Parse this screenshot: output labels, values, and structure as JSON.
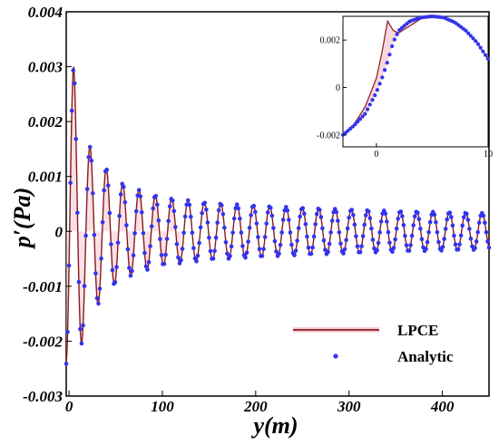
{
  "chart_data": {
    "type": "line",
    "xlabel": "y(m)",
    "ylabel": "p′(Pa)",
    "xlim": [
      -3,
      450
    ],
    "ylim": [
      -0.003,
      0.004
    ],
    "xticks": [
      "0",
      "100",
      "200",
      "300",
      "400"
    ],
    "xtick_values": [
      0,
      100,
      200,
      300,
      400
    ],
    "yticks": [
      "-0.003",
      "-0.002",
      "-0.001",
      "0",
      "0.001",
      "0.002",
      "0.003",
      "0.004"
    ],
    "ytick_values": [
      -0.003,
      -0.002,
      -0.001,
      0,
      0.001,
      0.002,
      0.003,
      0.004
    ],
    "legend_position": "bottom-right",
    "series": [
      {
        "name": "LPCE",
        "style": "line",
        "color": "#8b1a1a",
        "fill": "#f2c8d0"
      },
      {
        "name": "Analytic",
        "style": "markers",
        "color": "#3333ee"
      }
    ],
    "wave": {
      "y": [
        -3,
        0,
        5,
        10,
        15,
        20,
        30,
        40,
        50,
        60,
        80,
        100,
        150,
        200,
        250,
        300,
        350,
        400,
        450
      ],
      "amplitude": [
        0.0025,
        0.0028,
        0.003,
        0.0024,
        0.0019,
        0.0016,
        0.00135,
        0.00115,
        0.00095,
        0.00085,
        0.00072,
        0.00062,
        0.00052,
        0.00047,
        0.00043,
        0.0004,
        0.00037,
        0.00035,
        0.00033
      ],
      "wavelength": 17.5,
      "peak_at": 5
    },
    "inset": {
      "xlim": [
        -3,
        10
      ],
      "ylim": [
        -0.0025,
        0.003
      ],
      "xticks": [
        "0",
        "10"
      ],
      "xtick_values": [
        0,
        10
      ],
      "yticks": [
        "-0.002",
        "0",
        "0.002"
      ],
      "ytick_values": [
        -0.002,
        0,
        0.002
      ],
      "lpce_x": [
        -3,
        -2,
        -1,
        0,
        0.5,
        1,
        1.5,
        2,
        3,
        4,
        5,
        6,
        7,
        8,
        9,
        10
      ],
      "lpce_y": [
        -0.002,
        -0.00155,
        -0.0008,
        0.0004,
        0.0015,
        0.0028,
        0.0024,
        0.0023,
        0.0026,
        0.0029,
        0.003,
        0.00295,
        0.00275,
        0.0024,
        0.0019,
        0.0012
      ],
      "analytic_x": [
        -3,
        -2,
        -1,
        0,
        0.5,
        1,
        1.5,
        2,
        3,
        4,
        5,
        6,
        7,
        8,
        9,
        10
      ],
      "analytic_y": [
        -0.002,
        -0.0016,
        -0.0011,
        -0.0002,
        0.0004,
        0.0011,
        0.0019,
        0.0024,
        0.0028,
        0.00295,
        0.003,
        0.00295,
        0.00275,
        0.0024,
        0.0019,
        0.0012
      ]
    }
  }
}
